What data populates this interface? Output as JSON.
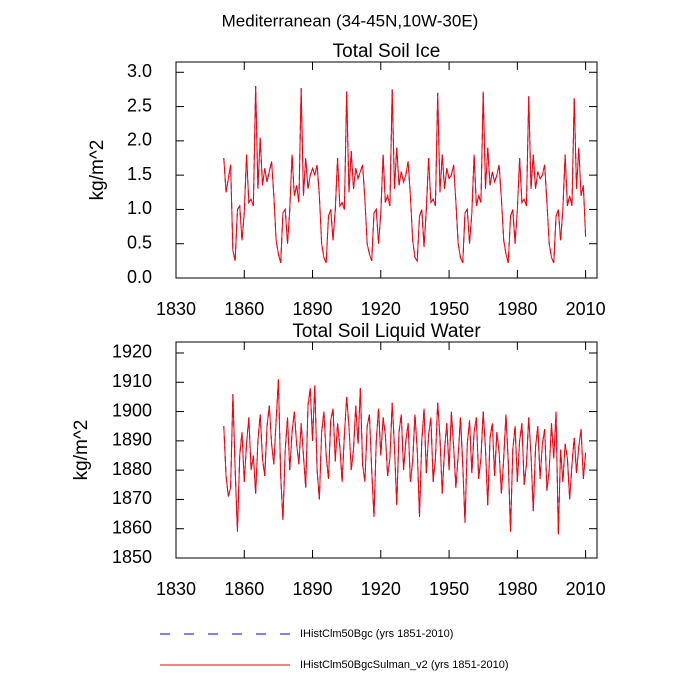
{
  "title": "Mediterranean (34-45N,10W-30E)",
  "chart_data": [
    {
      "type": "line",
      "title": "Total Soil Ice",
      "ylabel": "kg/m^2",
      "xlim": [
        1830,
        2015
      ],
      "xticks": [
        1830,
        1860,
        1890,
        1920,
        1950,
        1980,
        2010
      ],
      "ylim": [
        0,
        3.15
      ],
      "yticks": [
        {
          "value": 0,
          "label": "0.0"
        },
        0.5,
        {
          "value": 1,
          "label": "1.0"
        },
        1.5,
        {
          "value": 2,
          "label": "2.0"
        },
        2.5,
        {
          "value": 3,
          "label": "3.0"
        }
      ],
      "x": [
        1851,
        1852,
        1853,
        1854,
        1855,
        1856,
        1857,
        1858,
        1859,
        1860,
        1861,
        1862,
        1863,
        1864,
        1865,
        1866,
        1867,
        1868,
        1869,
        1870,
        1871,
        1872,
        1873,
        1874,
        1875,
        1876,
        1877,
        1878,
        1879,
        1880,
        1881,
        1882,
        1883,
        1884,
        1885,
        1886,
        1887,
        1888,
        1889,
        1890,
        1891,
        1892,
        1893,
        1894,
        1895,
        1896,
        1897,
        1898,
        1899,
        1900,
        1901,
        1902,
        1903,
        1904,
        1905,
        1906,
        1907,
        1908,
        1909,
        1910,
        1911,
        1912,
        1913,
        1914,
        1915,
        1916,
        1917,
        1918,
        1919,
        1920,
        1921,
        1922,
        1923,
        1924,
        1925,
        1926,
        1927,
        1928,
        1929,
        1930,
        1931,
        1932,
        1933,
        1934,
        1935,
        1936,
        1937,
        1938,
        1939,
        1940,
        1941,
        1942,
        1943,
        1944,
        1945,
        1946,
        1947,
        1948,
        1949,
        1950,
        1951,
        1952,
        1953,
        1954,
        1955,
        1956,
        1957,
        1958,
        1959,
        1960,
        1961,
        1962,
        1963,
        1964,
        1965,
        1966,
        1967,
        1968,
        1969,
        1970,
        1971,
        1972,
        1973,
        1974,
        1975,
        1976,
        1977,
        1978,
        1979,
        1980,
        1981,
        1982,
        1983,
        1984,
        1985,
        1986,
        1987,
        1988,
        1989,
        1990,
        1991,
        1992,
        1993,
        1994,
        1995,
        1996,
        1997,
        1998,
        1999,
        2000,
        2001,
        2002,
        2003,
        2004,
        2005,
        2006,
        2007,
        2008,
        2009,
        2010
      ],
      "series": [
        {
          "name": "IHistClm50Bgc (yrs 1851-2010)",
          "color": "#0000ff",
          "style": "dashed",
          "values": [
            1.75,
            1.25,
            1.45,
            1.65,
            0.4,
            0.25,
            1.0,
            1.05,
            0.55,
            0.95,
            1.8,
            1.1,
            1.15,
            1.05,
            2.8,
            1.3,
            2.05,
            1.35,
            1.6,
            1.4,
            1.55,
            1.7,
            1.2,
            0.55,
            0.35,
            0.22,
            0.95,
            1.0,
            0.5,
            1.0,
            1.8,
            1.2,
            1.35,
            1.1,
            2.77,
            1.2,
            1.75,
            1.3,
            1.5,
            1.6,
            1.5,
            1.65,
            1.2,
            0.5,
            0.3,
            0.22,
            0.9,
            1.0,
            0.55,
            1.0,
            1.75,
            1.05,
            1.1,
            1.0,
            2.72,
            1.25,
            1.85,
            1.3,
            1.6,
            1.45,
            1.55,
            1.65,
            1.15,
            0.5,
            0.35,
            0.25,
            0.95,
            1.0,
            0.5,
            0.95,
            1.8,
            1.1,
            1.2,
            1.05,
            2.75,
            1.3,
            1.9,
            1.35,
            1.55,
            1.4,
            1.5,
            1.7,
            1.2,
            0.55,
            0.3,
            0.25,
            0.9,
            1.0,
            0.45,
            1.0,
            1.75,
            1.1,
            1.15,
            1.05,
            2.7,
            1.25,
            1.8,
            1.3,
            1.6,
            1.45,
            1.5,
            1.65,
            1.1,
            0.5,
            0.3,
            0.22,
            0.95,
            1.0,
            0.5,
            0.95,
            1.8,
            1.05,
            1.2,
            1.1,
            2.72,
            1.3,
            1.9,
            1.35,
            1.55,
            1.4,
            1.5,
            1.65,
            1.15,
            0.55,
            0.35,
            0.22,
            0.9,
            1.0,
            0.5,
            1.0,
            1.75,
            1.1,
            1.15,
            1.05,
            2.65,
            1.3,
            1.8,
            1.3,
            1.55,
            1.45,
            1.5,
            1.65,
            1.1,
            0.5,
            0.3,
            0.22,
            0.9,
            1.0,
            0.55,
            1.0,
            1.8,
            1.05,
            1.2,
            1.05,
            2.62,
            1.3,
            1.9,
            1.2,
            1.35,
            0.6
          ]
        },
        {
          "name": "IHistClm50BgcSulman_v2 (yrs 1851-2010)",
          "color": "#ff0000",
          "style": "solid",
          "values": [
            1.75,
            1.25,
            1.45,
            1.65,
            0.4,
            0.25,
            1.0,
            1.05,
            0.55,
            0.95,
            1.8,
            1.1,
            1.15,
            1.05,
            2.8,
            1.3,
            2.05,
            1.35,
            1.6,
            1.4,
            1.55,
            1.7,
            1.2,
            0.55,
            0.35,
            0.22,
            0.95,
            1.0,
            0.5,
            1.0,
            1.8,
            1.2,
            1.35,
            1.1,
            2.77,
            1.2,
            1.75,
            1.3,
            1.5,
            1.6,
            1.5,
            1.65,
            1.2,
            0.5,
            0.3,
            0.22,
            0.9,
            1.0,
            0.55,
            1.0,
            1.75,
            1.05,
            1.1,
            1.0,
            2.72,
            1.25,
            1.85,
            1.3,
            1.6,
            1.45,
            1.55,
            1.65,
            1.15,
            0.5,
            0.35,
            0.25,
            0.95,
            1.0,
            0.5,
            0.95,
            1.8,
            1.1,
            1.2,
            1.05,
            2.75,
            1.3,
            1.9,
            1.35,
            1.55,
            1.4,
            1.5,
            1.7,
            1.2,
            0.55,
            0.3,
            0.25,
            0.9,
            1.0,
            0.45,
            1.0,
            1.75,
            1.1,
            1.15,
            1.05,
            2.7,
            1.25,
            1.8,
            1.3,
            1.6,
            1.45,
            1.5,
            1.65,
            1.1,
            0.5,
            0.3,
            0.22,
            0.95,
            1.0,
            0.5,
            0.95,
            1.8,
            1.05,
            1.2,
            1.1,
            2.72,
            1.3,
            1.9,
            1.35,
            1.55,
            1.4,
            1.5,
            1.65,
            1.15,
            0.55,
            0.35,
            0.22,
            0.9,
            1.0,
            0.5,
            1.0,
            1.75,
            1.1,
            1.15,
            1.05,
            2.65,
            1.3,
            1.8,
            1.3,
            1.55,
            1.45,
            1.5,
            1.65,
            1.1,
            0.5,
            0.3,
            0.22,
            0.9,
            1.0,
            0.55,
            1.0,
            1.8,
            1.05,
            1.2,
            1.05,
            2.62,
            1.3,
            1.9,
            1.2,
            1.35,
            0.6
          ]
        }
      ]
    },
    {
      "type": "line",
      "title": "Total Soil Liquid Water",
      "ylabel": "kg/m^2",
      "xlim": [
        1830,
        2015
      ],
      "xticks": [
        1830,
        1860,
        1890,
        1920,
        1950,
        1980,
        2010
      ],
      "ylim": [
        1850,
        1923.75
      ],
      "yticks": [
        1850,
        1860,
        1870,
        1880,
        1890,
        1900,
        1910,
        1920
      ],
      "x": [
        1851,
        1852,
        1853,
        1854,
        1855,
        1856,
        1857,
        1858,
        1859,
        1860,
        1861,
        1862,
        1863,
        1864,
        1865,
        1866,
        1867,
        1868,
        1869,
        1870,
        1871,
        1872,
        1873,
        1874,
        1875,
        1876,
        1877,
        1878,
        1879,
        1880,
        1881,
        1882,
        1883,
        1884,
        1885,
        1886,
        1887,
        1888,
        1889,
        1890,
        1891,
        1892,
        1893,
        1894,
        1895,
        1896,
        1897,
        1898,
        1899,
        1900,
        1901,
        1902,
        1903,
        1904,
        1905,
        1906,
        1907,
        1908,
        1909,
        1910,
        1911,
        1912,
        1913,
        1914,
        1915,
        1916,
        1917,
        1918,
        1919,
        1920,
        1921,
        1922,
        1923,
        1924,
        1925,
        1926,
        1927,
        1928,
        1929,
        1930,
        1931,
        1932,
        1933,
        1934,
        1935,
        1936,
        1937,
        1938,
        1939,
        1940,
        1941,
        1942,
        1943,
        1944,
        1945,
        1946,
        1947,
        1948,
        1949,
        1950,
        1951,
        1952,
        1953,
        1954,
        1955,
        1956,
        1957,
        1958,
        1959,
        1960,
        1961,
        1962,
        1963,
        1964,
        1965,
        1966,
        1967,
        1968,
        1969,
        1970,
        1971,
        1972,
        1973,
        1974,
        1975,
        1976,
        1977,
        1978,
        1979,
        1980,
        1981,
        1982,
        1983,
        1984,
        1985,
        1986,
        1987,
        1988,
        1989,
        1990,
        1991,
        1992,
        1993,
        1994,
        1995,
        1996,
        1997,
        1998,
        1999,
        2000,
        2001,
        2002,
        2003,
        2004,
        2005,
        2006,
        2007,
        2008,
        2009,
        2010
      ],
      "series": [
        {
          "name": "IHistClm50Bgc (yrs 1851-2010)",
          "color": "#0000ff",
          "style": "dashed",
          "values": [
            1895,
            1878,
            1871,
            1874,
            1906,
            1880,
            1859,
            1885,
            1893,
            1876,
            1889,
            1898,
            1880,
            1885,
            1872,
            1890,
            1899,
            1884,
            1878,
            1895,
            1902,
            1889,
            1882,
            1897,
            1911,
            1878,
            1863,
            1887,
            1898,
            1880,
            1893,
            1900,
            1889,
            1882,
            1896,
            1885,
            1874,
            1902,
            1908,
            1890,
            1909,
            1880,
            1870,
            1893,
            1900,
            1885,
            1877,
            1897,
            1901,
            1883,
            1896,
            1888,
            1876,
            1892,
            1905,
            1895,
            1880,
            1887,
            1902,
            1889,
            1908,
            1882,
            1876,
            1895,
            1899,
            1880,
            1864,
            1890,
            1901,
            1885,
            1898,
            1892,
            1878,
            1884,
            1903,
            1888,
            1868,
            1893,
            1899,
            1880,
            1890,
            1896,
            1876,
            1883,
            1899,
            1887,
            1864,
            1890,
            1901,
            1879,
            1892,
            1898,
            1876,
            1884,
            1903,
            1891,
            1872,
            1887,
            1896,
            1880,
            1900,
            1888,
            1874,
            1885,
            1898,
            1882,
            1862,
            1889,
            1897,
            1879,
            1893,
            1898,
            1877,
            1884,
            1900,
            1887,
            1868,
            1891,
            1896,
            1878,
            1893,
            1886,
            1872,
            1884,
            1899,
            1883,
            1859,
            1887,
            1895,
            1876,
            1890,
            1896,
            1875,
            1882,
            1898,
            1885,
            1866,
            1888,
            1895,
            1877,
            1889,
            1894,
            1873,
            1880,
            1896,
            1884,
            1900,
            1858,
            1887,
            1876,
            1889,
            1884,
            1870,
            1882,
            1891,
            1879,
            1888,
            1894,
            1877,
            1886
          ]
        },
        {
          "name": "IHistClm50BgcSulman_v2 (yrs 1851-2010)",
          "color": "#ff0000",
          "style": "solid",
          "values": [
            1895,
            1878,
            1871,
            1874,
            1906,
            1880,
            1859,
            1885,
            1893,
            1876,
            1889,
            1898,
            1880,
            1885,
            1872,
            1890,
            1899,
            1884,
            1878,
            1895,
            1902,
            1889,
            1882,
            1897,
            1911,
            1878,
            1863,
            1887,
            1898,
            1880,
            1893,
            1900,
            1889,
            1882,
            1896,
            1885,
            1874,
            1902,
            1908,
            1890,
            1909,
            1880,
            1870,
            1893,
            1900,
            1885,
            1877,
            1897,
            1901,
            1883,
            1896,
            1888,
            1876,
            1892,
            1905,
            1895,
            1880,
            1887,
            1902,
            1889,
            1908,
            1882,
            1876,
            1895,
            1899,
            1880,
            1864,
            1890,
            1901,
            1885,
            1898,
            1892,
            1878,
            1884,
            1903,
            1888,
            1868,
            1893,
            1899,
            1880,
            1890,
            1896,
            1876,
            1883,
            1899,
            1887,
            1864,
            1890,
            1901,
            1879,
            1892,
            1898,
            1876,
            1884,
            1903,
            1891,
            1872,
            1887,
            1896,
            1880,
            1900,
            1888,
            1874,
            1885,
            1898,
            1882,
            1862,
            1889,
            1897,
            1879,
            1893,
            1898,
            1877,
            1884,
            1900,
            1887,
            1868,
            1891,
            1896,
            1878,
            1893,
            1886,
            1872,
            1884,
            1899,
            1883,
            1859,
            1887,
            1895,
            1876,
            1890,
            1896,
            1875,
            1882,
            1898,
            1885,
            1866,
            1888,
            1895,
            1877,
            1889,
            1894,
            1873,
            1880,
            1896,
            1884,
            1900,
            1858,
            1887,
            1876,
            1889,
            1884,
            1870,
            1882,
            1891,
            1879,
            1888,
            1894,
            1877,
            1886
          ]
        }
      ]
    }
  ]
}
